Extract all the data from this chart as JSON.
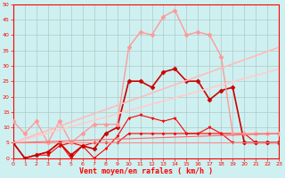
{
  "xlabel": "Vent moyen/en rafales ( km/h )",
  "background_color": "#cff0f0",
  "grid_color": "#b0c8c8",
  "xlim": [
    0,
    23
  ],
  "ylim": [
    0,
    50
  ],
  "yticks": [
    0,
    5,
    10,
    15,
    20,
    25,
    30,
    35,
    40,
    45,
    50
  ],
  "xticks": [
    0,
    1,
    2,
    3,
    4,
    5,
    6,
    7,
    8,
    9,
    10,
    11,
    12,
    13,
    14,
    15,
    16,
    17,
    18,
    19,
    20,
    21,
    22,
    23
  ],
  "series": [
    {
      "x": [
        0,
        1,
        2,
        3,
        4,
        5,
        6,
        7,
        8,
        9,
        10,
        11,
        12,
        13,
        14,
        15,
        16,
        17,
        18,
        19,
        20,
        21,
        22,
        23
      ],
      "y": [
        5,
        0,
        1,
        1,
        4,
        5,
        4,
        5,
        5,
        5,
        8,
        8,
        8,
        8,
        8,
        8,
        8,
        8,
        8,
        8,
        8,
        5,
        5,
        5
      ],
      "color": "#ff0000",
      "linewidth": 0.8,
      "marker": "D",
      "markersize": 1.5,
      "linestyle": "-"
    },
    {
      "x": [
        0,
        1,
        2,
        3,
        4,
        5,
        6,
        7,
        8,
        9,
        10,
        11,
        12,
        13,
        14,
        15,
        16,
        17,
        18,
        19,
        20,
        21,
        22,
        23
      ],
      "y": [
        5,
        0,
        1,
        2,
        5,
        0,
        4,
        0,
        3,
        7,
        13,
        14,
        13,
        12,
        13,
        8,
        8,
        10,
        8,
        5,
        5,
        5,
        5,
        5
      ],
      "color": "#ff0000",
      "linewidth": 0.8,
      "marker": "v",
      "markersize": 2,
      "linestyle": "-"
    },
    {
      "x": [
        0,
        1,
        2,
        3,
        4,
        5,
        6,
        7,
        8,
        9,
        10,
        11,
        12,
        13,
        14,
        15,
        16,
        17,
        18,
        19,
        20,
        21,
        22,
        23
      ],
      "y": [
        5,
        0,
        1,
        2,
        5,
        1,
        4,
        3,
        8,
        10,
        25,
        25,
        23,
        28,
        29,
        25,
        25,
        19,
        22,
        23,
        5,
        5,
        5,
        5
      ],
      "color": "#cc0000",
      "linewidth": 1.2,
      "marker": "D",
      "markersize": 2.5,
      "linestyle": "-"
    },
    {
      "x": [
        0,
        1,
        2,
        3,
        4,
        5,
        6,
        7,
        8,
        9,
        10,
        11,
        12,
        13,
        14,
        15,
        16,
        17,
        18,
        19,
        20,
        21,
        22,
        23
      ],
      "y": [
        12,
        8,
        12,
        5,
        12,
        5,
        8,
        11,
        11,
        11,
        36,
        41,
        40,
        46,
        48,
        40,
        41,
        40,
        33,
        8,
        8,
        8,
        8,
        8
      ],
      "color": "#ff9999",
      "linewidth": 1.0,
      "marker": "D",
      "markersize": 2.5,
      "linestyle": "-"
    },
    {
      "x": [
        0,
        23
      ],
      "y": [
        5,
        36
      ],
      "color": "#ffbbbb",
      "linewidth": 1.2,
      "marker": null,
      "linestyle": "-"
    },
    {
      "x": [
        0,
        23
      ],
      "y": [
        5,
        29
      ],
      "color": "#ffcccc",
      "linewidth": 1.2,
      "marker": null,
      "linestyle": "-"
    },
    {
      "x": [
        0,
        23
      ],
      "y": [
        5,
        8
      ],
      "color": "#ff6666",
      "linewidth": 0.8,
      "marker": null,
      "linestyle": "-"
    },
    {
      "x": [
        0,
        23
      ],
      "y": [
        5,
        5
      ],
      "color": "#ff8888",
      "linewidth": 0.8,
      "marker": null,
      "linestyle": "-"
    }
  ]
}
